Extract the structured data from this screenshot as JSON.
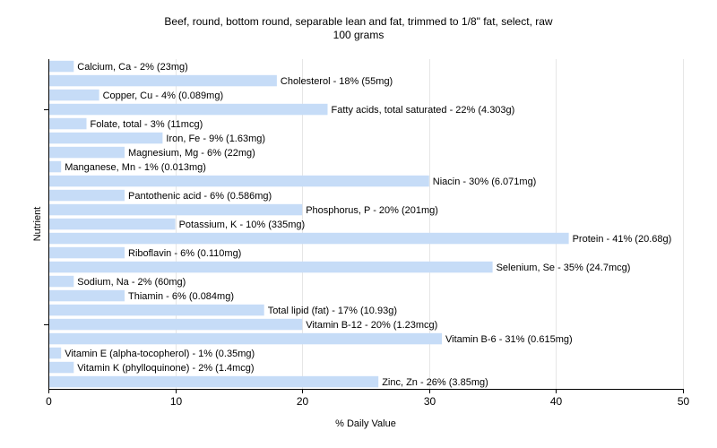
{
  "chart_data": {
    "type": "bar",
    "orientation": "horizontal",
    "title": "Beef, round, bottom round, separable lean and fat, trimmed to 1/8\" fat, select, raw",
    "subtitle": "100 grams",
    "xlabel": "% Daily Value",
    "ylabel": "Nutrient",
    "xlim": [
      0,
      50
    ],
    "xticks": [
      0,
      10,
      20,
      30,
      40,
      50
    ],
    "grid": true,
    "bar_color": "#c6dcf7",
    "categories": [
      "Calcium, Ca",
      "Cholesterol",
      "Copper, Cu",
      "Fatty acids, total saturated",
      "Folate, total",
      "Iron, Fe",
      "Magnesium, Mg",
      "Manganese, Mn",
      "Niacin",
      "Pantothenic acid",
      "Phosphorus, P",
      "Potassium, K",
      "Protein",
      "Riboflavin",
      "Selenium, Se",
      "Sodium, Na",
      "Thiamin",
      "Total lipid (fat)",
      "Vitamin B-12",
      "Vitamin B-6",
      "Vitamin E (alpha-tocopherol)",
      "Vitamin K (phylloquinone)",
      "Zinc, Zn"
    ],
    "values": [
      2,
      18,
      4,
      22,
      3,
      9,
      6,
      1,
      30,
      6,
      20,
      10,
      41,
      6,
      35,
      2,
      6,
      17,
      20,
      31,
      1,
      2,
      26
    ],
    "labels": [
      "Calcium, Ca - 2% (23mg)",
      "Cholesterol - 18% (55mg)",
      "Copper, Cu - 4% (0.089mg)",
      "Fatty acids, total saturated - 22% (4.303g)",
      "Folate, total - 3% (11mcg)",
      "Iron, Fe - 9% (1.63mg)",
      "Magnesium, Mg - 6% (22mg)",
      "Manganese, Mn - 1% (0.013mg)",
      "Niacin - 30% (6.071mg)",
      "Pantothenic acid - 6% (0.586mg)",
      "Phosphorus, P - 20% (201mg)",
      "Potassium, K - 10% (335mg)",
      "Protein - 41% (20.68g)",
      "Riboflavin - 6% (0.110mg)",
      "Selenium, Se - 35% (24.7mcg)",
      "Sodium, Na - 2% (60mg)",
      "Thiamin - 6% (0.084mg)",
      "Total lipid (fat) - 17% (10.93g)",
      "Vitamin B-12 - 20% (1.23mcg)",
      "Vitamin B-6 - 31% (0.615mg)",
      "Vitamin E (alpha-tocopherol) - 1% (0.35mg)",
      "Vitamin K (phylloquinone) - 2% (1.4mcg)",
      "Zinc, Zn - 26% (3.85mg)"
    ]
  }
}
